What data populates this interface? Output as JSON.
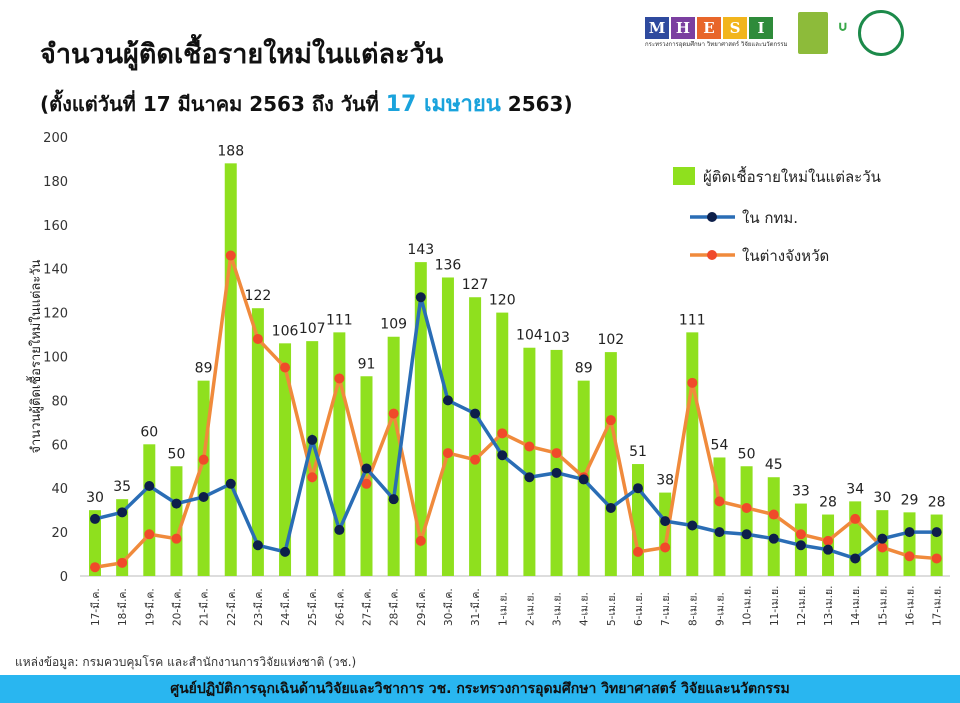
{
  "header": {
    "title": "จำนวนผู้ติดเชื้อรายใหม่ในแต่ละวัน",
    "subtitle_pre": "(ตั้งแต่วันที่ 17 มีนาคม 2563 ถึง วันที่ ",
    "subtitle_hl": "17 เมษายน",
    "subtitle_post": " 2563)"
  },
  "logos": {
    "mhesi": [
      "M",
      "H",
      "E",
      "S",
      "I"
    ],
    "mhesi_colors": [
      "#2e4a9e",
      "#7b3fa0",
      "#e8662a",
      "#f2b51c",
      "#2e8b3a"
    ],
    "mhesi_caption": "กระทรวงการอุดมศึกษา วิทยาศาสตร์ วิจัยและนวัตกรรม",
    "nrct": "วช. NRCT",
    "anniv": "๖๐ 5G",
    "ddc": "กรมควบคุมโรค"
  },
  "chart_data": {
    "type": "bar+line",
    "ylabel": "จำนวนผู้ติดเชื้อรายใหม่ในแต่ละวัน",
    "ylim": [
      0,
      200
    ],
    "yticks": [
      0,
      20,
      40,
      60,
      80,
      100,
      120,
      140,
      160,
      180,
      200
    ],
    "grid": false,
    "legend_placement": "top-right",
    "categories": [
      "17-มี.ค.",
      "18-มี.ค.",
      "19-มี.ค.",
      "20-มี.ค.",
      "21-มี.ค.",
      "22-มี.ค.",
      "23-มี.ค.",
      "24-มี.ค.",
      "25-มี.ค.",
      "26-มี.ค.",
      "27-มี.ค.",
      "28-มี.ค.",
      "29-มี.ค.",
      "30-มี.ค.",
      "31-มี.ค.",
      "1-เม.ย.",
      "2-เม.ย.",
      "3-เม.ย.",
      "4-เม.ย.",
      "5-เม.ย.",
      "6-เม.ย.",
      "7-เม.ย.",
      "8-เม.ย.",
      "9-เม.ย.",
      "10-เม.ย.",
      "11-เม.ย.",
      "12-เม.ย.",
      "13-เม.ย.",
      "14-เม.ย.",
      "15-เม.ย.",
      "16-เม.ย.",
      "17-เม.ย."
    ],
    "series": [
      {
        "name": "ผู้ติดเชื้อรายใหม่ในแต่ละวัน",
        "type": "bar",
        "color": "#8fe01e",
        "values": [
          30,
          35,
          60,
          50,
          89,
          188,
          122,
          106,
          107,
          111,
          91,
          109,
          143,
          136,
          127,
          120,
          104,
          103,
          89,
          102,
          51,
          38,
          111,
          54,
          50,
          45,
          33,
          28,
          34,
          30,
          29,
          28
        ]
      },
      {
        "name": "ใน กทม.",
        "type": "line",
        "color": "#2a6db5",
        "marker": "#0d1f4a",
        "values": [
          26,
          29,
          41,
          33,
          36,
          42,
          14,
          11,
          62,
          21,
          49,
          35,
          127,
          80,
          74,
          55,
          45,
          47,
          44,
          31,
          40,
          25,
          23,
          20,
          19,
          17,
          14,
          12,
          8,
          17,
          20,
          20
        ]
      },
      {
        "name": "ในต่างจังหวัด",
        "type": "line",
        "color": "#f08a3c",
        "marker": "#f04a2a",
        "values": [
          4,
          6,
          19,
          17,
          53,
          146,
          108,
          95,
          45,
          90,
          42,
          74,
          16,
          56,
          53,
          65,
          59,
          56,
          45,
          71,
          11,
          13,
          88,
          34,
          31,
          28,
          19,
          16,
          26,
          13,
          9,
          8
        ]
      }
    ]
  },
  "source": "แหล่งข้อมูล: กรมควบคุมโรค และสำนักงานการวิจัยแห่งชาติ (วช.)",
  "footer": "ศูนย์ปฏิบัติการฉุกเฉินด้านวิจัยและวิชาการ   วช.   กระทรวงการอุดมศึกษา วิทยาศาสตร์ วิจัยและนวัตกรรม"
}
